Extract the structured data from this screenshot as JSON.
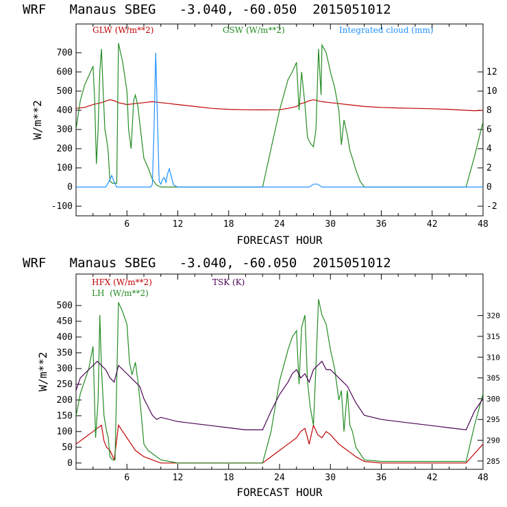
{
  "chart_data": [
    {
      "type": "line",
      "title": "WRF   Manaus SBEG   -3.040, -60.050  2015051012",
      "xlabel": "FORECAST HOUR",
      "ylabel": "W/m**2",
      "xlim": [
        0,
        48
      ],
      "ylim": [
        -150,
        850
      ],
      "y2lim": [
        -3,
        17
      ],
      "x_ticks": [
        "6",
        "12",
        "18",
        "24",
        "30",
        "36",
        "42",
        "48"
      ],
      "y_ticks": [
        "-100",
        "0",
        "100",
        "200",
        "300",
        "400",
        "500",
        "600",
        "700"
      ],
      "y2_ticks": [
        "-2",
        "0",
        "2",
        "4",
        "6",
        "8",
        "10",
        "12"
      ],
      "legend": [
        "GLW (W/m**2)",
        "GSW (W/m**2)",
        "Integrated cloud (mm)"
      ],
      "colors": {
        "GLW": "#c00000",
        "GSW": "#228b22",
        "cloud": "#1e90ff"
      },
      "series": [
        {
          "name": "GLW (W/m**2)",
          "axis": "left",
          "color": "#c00000",
          "x": [
            0,
            1,
            2,
            3,
            3.5,
            4,
            4.5,
            5,
            6,
            7,
            8,
            9,
            10,
            11,
            12,
            13,
            14,
            16,
            18,
            20,
            22,
            24,
            25,
            26,
            26.5,
            27,
            27.5,
            28,
            29,
            30,
            31,
            32,
            33,
            34,
            36,
            38,
            40,
            42,
            44,
            46,
            47,
            48
          ],
          "y": [
            410,
            415,
            430,
            440,
            448,
            455,
            450,
            440,
            430,
            435,
            440,
            445,
            440,
            435,
            430,
            425,
            420,
            410,
            405,
            403,
            402,
            403,
            410,
            420,
            435,
            440,
            450,
            455,
            445,
            440,
            435,
            430,
            425,
            420,
            415,
            412,
            410,
            408,
            405,
            400,
            398,
            400
          ]
        },
        {
          "name": "GSW (W/m**2)",
          "axis": "left",
          "color": "#228b22",
          "x": [
            0,
            0.5,
            1,
            1.5,
            2,
            2.2,
            2.4,
            2.6,
            2.8,
            3,
            3.2,
            3.4,
            3.6,
            3.8,
            4,
            4.3,
            4.6,
            4.8,
            5,
            5.5,
            6,
            6.2,
            6.5,
            6.8,
            7,
            7.3,
            7.6,
            8,
            8.5,
            9,
            9.5,
            10,
            11,
            12,
            14,
            16,
            18,
            20,
            22,
            23,
            24,
            25,
            25.5,
            26,
            26.3,
            26.6,
            27,
            27.3,
            27.6,
            28,
            28.3,
            28.6,
            28.9,
            29,
            29.5,
            30,
            30.5,
            31,
            31.3,
            31.6,
            32,
            32.3,
            32.6,
            33,
            33.5,
            34,
            35,
            36,
            40,
            44,
            46,
            47,
            48
          ],
          "y": [
            300,
            450,
            530,
            580,
            630,
            450,
            120,
            300,
            600,
            720,
            500,
            300,
            250,
            180,
            30,
            20,
            20,
            20,
            750,
            650,
            500,
            300,
            200,
            450,
            480,
            420,
            300,
            150,
            100,
            40,
            10,
            0,
            0,
            0,
            0,
            0,
            0,
            0,
            0,
            200,
            400,
            560,
            600,
            650,
            400,
            600,
            430,
            260,
            230,
            210,
            300,
            720,
            480,
            740,
            700,
            600,
            520,
            400,
            220,
            350,
            270,
            190,
            150,
            90,
            30,
            0,
            0,
            0,
            0,
            0,
            0,
            160,
            340
          ]
        },
        {
          "name": "Integrated cloud (mm)",
          "axis": "right",
          "color": "#1e90ff",
          "x": [
            0,
            3.5,
            3.9,
            4.2,
            4.5,
            4.8,
            5,
            8.8,
            9,
            9.2,
            9.4,
            9.6,
            9.8,
            10,
            10.2,
            10.4,
            10.6,
            10.8,
            11,
            11.2,
            11.5,
            12,
            27.5,
            28,
            28.5,
            29,
            48
          ],
          "y": [
            0,
            0,
            0.6,
            1.2,
            0.5,
            0,
            0,
            0,
            0.3,
            6,
            14,
            7,
            0.6,
            0.3,
            0.8,
            1.0,
            0.5,
            1.4,
            1.9,
            1.2,
            0.2,
            0,
            0,
            0.3,
            0.3,
            0,
            0
          ]
        }
      ]
    },
    {
      "type": "line",
      "title": "WRF   Manaus SBEG   -3.040, -60.050  2015051012",
      "xlabel": "FORECAST HOUR",
      "ylabel": "W/m**2",
      "xlim": [
        0,
        48
      ],
      "ylim": [
        -20,
        600
      ],
      "y2lim": [
        283,
        330
      ],
      "x_ticks": [
        "6",
        "12",
        "18",
        "24",
        "30",
        "36",
        "42",
        "48"
      ],
      "y_ticks": [
        "0",
        "50",
        "100",
        "150",
        "200",
        "250",
        "300",
        "350",
        "400",
        "450",
        "500"
      ],
      "y2_ticks": [
        "285",
        "290",
        "295",
        "300",
        "305",
        "310",
        "315",
        "320"
      ],
      "legend": [
        "HFX (W/m**2)",
        "LH  (W/m**2)",
        "TSK (K)"
      ],
      "colors": {
        "HFX": "#c00000",
        "LH": "#228b22",
        "TSK": "#4b0055"
      },
      "series": [
        {
          "name": "HFX (W/m**2)",
          "axis": "left",
          "color": "#c00000",
          "x": [
            0,
            1,
            2,
            2.5,
            3,
            3.3,
            3.6,
            4,
            4.5,
            5,
            5.5,
            6,
            6.5,
            7,
            8,
            9,
            10,
            12,
            16,
            20,
            22,
            23,
            24,
            25,
            26,
            26.5,
            27,
            27.5,
            28,
            28.5,
            29,
            29.5,
            30,
            31,
            32,
            33,
            34,
            36,
            40,
            44,
            46,
            47,
            48
          ],
          "y": [
            60,
            80,
            100,
            110,
            120,
            70,
            50,
            40,
            10,
            120,
            100,
            80,
            60,
            40,
            20,
            10,
            0,
            0,
            0,
            0,
            0,
            20,
            40,
            60,
            80,
            100,
            110,
            60,
            120,
            90,
            80,
            100,
            90,
            60,
            40,
            20,
            5,
            0,
            0,
            0,
            0,
            30,
            60
          ]
        },
        {
          "name": "LH  (W/m**2)",
          "axis": "left",
          "color": "#228b22",
          "x": [
            0,
            0.5,
            1,
            1.5,
            2,
            2.3,
            2.6,
            2.8,
            3,
            3.3,
            3.6,
            3.8,
            4,
            4.3,
            4.6,
            5,
            5.5,
            6,
            6.3,
            6.6,
            7,
            7.3,
            7.6,
            8,
            8.5,
            9,
            9.5,
            10,
            11,
            12,
            16,
            20,
            22,
            23,
            24,
            25,
            25.5,
            26,
            26.3,
            26.6,
            27,
            27.3,
            27.6,
            28,
            28.3,
            28.6,
            29,
            29.5,
            30,
            30.5,
            31,
            31.3,
            31.6,
            32,
            32.3,
            32.6,
            33,
            33.5,
            34,
            36,
            40,
            44,
            46,
            47,
            48
          ],
          "y": [
            150,
            220,
            260,
            300,
            370,
            80,
            200,
            470,
            300,
            150,
            100,
            80,
            20,
            10,
            10,
            510,
            480,
            440,
            320,
            280,
            320,
            260,
            180,
            60,
            40,
            30,
            20,
            10,
            5,
            0,
            0,
            0,
            0,
            100,
            260,
            360,
            400,
            420,
            250,
            430,
            470,
            260,
            180,
            120,
            310,
            520,
            470,
            440,
            360,
            300,
            200,
            230,
            100,
            230,
            120,
            100,
            50,
            30,
            10,
            5,
            5,
            5,
            5,
            120,
            220
          ]
        },
        {
          "name": "TSK (K)",
          "axis": "right",
          "color": "#4b0055",
          "x": [
            0,
            0.5,
            1,
            1.5,
            2,
            2.5,
            3,
            3.5,
            4,
            4.5,
            5,
            5.5,
            6,
            6.5,
            7,
            7.5,
            8,
            8.5,
            9,
            9.5,
            10,
            12,
            14,
            16,
            18,
            20,
            22,
            23,
            24,
            25,
            25.5,
            26,
            26.5,
            27,
            27.5,
            28,
            28.5,
            29,
            29.5,
            30,
            31,
            32,
            33,
            34,
            36,
            38,
            40,
            42,
            44,
            46,
            47,
            48
          ],
          "y": [
            302,
            305,
            306,
            307,
            308,
            309,
            308,
            307,
            305,
            304,
            308,
            307,
            306,
            305,
            304,
            303,
            300,
            298,
            296,
            295,
            295.5,
            294.5,
            294,
            293.5,
            293,
            292.5,
            292.5,
            297,
            301,
            304,
            306,
            307,
            305,
            306,
            304,
            307,
            308,
            309,
            307,
            307,
            305,
            303,
            299,
            296,
            295,
            294.5,
            294,
            293.5,
            293,
            292.5,
            297,
            300
          ]
        }
      ]
    }
  ]
}
